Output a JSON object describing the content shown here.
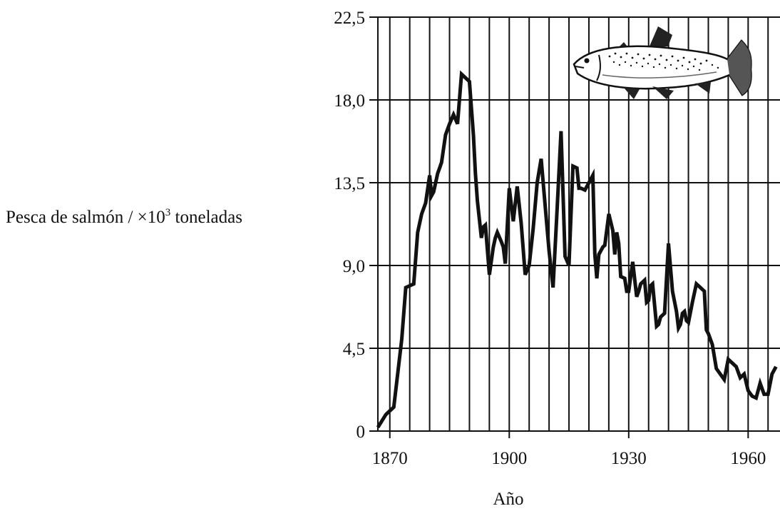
{
  "chart_data": {
    "type": "line",
    "title": "",
    "ylabel": "Pesca de salmón / ×10",
    "ylabel_exponent": "3",
    "ylabel_unit": "toneladas",
    "xlabel": "Año",
    "xlim": [
      1867,
      1968
    ],
    "ylim": [
      0,
      22.5
    ],
    "x_ticks": [
      1870,
      1900,
      1930,
      1960
    ],
    "x_tick_labels": [
      "1870",
      "1900",
      "1930",
      "1960"
    ],
    "y_ticks": [
      0,
      4.5,
      9,
      13.5,
      18,
      22.5
    ],
    "y_tick_labels": [
      "0",
      "4,5",
      "9,0",
      "13,5",
      "18,0",
      "22,5"
    ],
    "x_gridlines": [
      1867,
      1870,
      1875,
      1880,
      1885,
      1890,
      1895,
      1900,
      1905,
      1910,
      1915,
      1920,
      1925,
      1930,
      1935,
      1940,
      1945,
      1950,
      1955,
      1960,
      1965
    ],
    "grid": true,
    "line_color": "#111111",
    "illustration": "salmon-fish",
    "series": [
      {
        "x": [
          1867,
          1869,
          1871,
          1873,
          1874,
          1875,
          1876,
          1877,
          1877.5,
          1878,
          1879,
          1880,
          1880.5,
          1881,
          1882,
          1882.5,
          1883,
          1884,
          1885,
          1886,
          1887,
          1888,
          1889,
          1890,
          1891,
          1891.5,
          1892,
          1893,
          1893.5,
          1894,
          1895,
          1896,
          1896.5,
          1897,
          1898,
          1898.5,
          1899,
          1900,
          1901,
          1902,
          1903,
          1904,
          1905,
          1905.5,
          1906,
          1907,
          1908,
          1909,
          1910,
          1911,
          1912,
          1913,
          1914,
          1915,
          1916,
          1917,
          1917.5,
          1918,
          1919,
          1920,
          1921,
          1921.5,
          1922,
          1922.5,
          1923,
          1923.5,
          1924,
          1925,
          1926,
          1926.5,
          1927,
          1927.5,
          1928,
          1929,
          1929.5,
          1930,
          1931,
          1932,
          1932.5,
          1933,
          1934,
          1934.5,
          1935,
          1935.5,
          1936,
          1937,
          1937.5,
          1938,
          1939,
          1940,
          1941,
          1942,
          1942.5,
          1943,
          1943.5,
          1944,
          1944.5,
          1945,
          1946,
          1947,
          1948,
          1949,
          1949.5,
          1950,
          1951,
          1952,
          1953,
          1954,
          1955,
          1956,
          1957,
          1958,
          1959,
          1960,
          1961,
          1962,
          1963,
          1964,
          1965,
          1966,
          1967
        ],
        "y": [
          0.2,
          0.9,
          1.3,
          5.0,
          7.8,
          7.9,
          8.0,
          10.8,
          11.3,
          11.8,
          12.4,
          13.9,
          12.8,
          13.0,
          14.0,
          14.3,
          14.6,
          16.1,
          16.7,
          17.2,
          16.7,
          19.4,
          19.2,
          19.0,
          16.1,
          14.0,
          12.5,
          10.5,
          11.1,
          11.2,
          8.5,
          10.0,
          10.5,
          10.8,
          10.3,
          10.0,
          9.1,
          13.2,
          11.4,
          13.3,
          11.3,
          8.5,
          9.0,
          10.0,
          11.0,
          13.5,
          14.8,
          12.3,
          9.8,
          7.8,
          12.0,
          16.3,
          9.5,
          9.0,
          14.4,
          14.3,
          13.2,
          13.2,
          13.1,
          13.5,
          13.9,
          9.6,
          8.3,
          9.6,
          9.8,
          10.0,
          10.1,
          11.8,
          10.9,
          9.6,
          10.8,
          10.2,
          8.4,
          8.3,
          7.6,
          7.6,
          9.2,
          7.3,
          7.6,
          8.0,
          8.2,
          7.0,
          7.1,
          7.9,
          8.0,
          5.7,
          5.8,
          6.2,
          6.4,
          10.2,
          7.6,
          6.5,
          5.6,
          5.8,
          6.4,
          6.5,
          6.0,
          5.9,
          7.0,
          8.0,
          7.8,
          7.6,
          5.5,
          5.3,
          4.7,
          3.4,
          3.1,
          2.8,
          3.9,
          3.7,
          3.5,
          2.9,
          3.1,
          2.2,
          1.9,
          1.8,
          2.6,
          2.0,
          2.0,
          3.1,
          3.5
        ]
      }
    ]
  }
}
